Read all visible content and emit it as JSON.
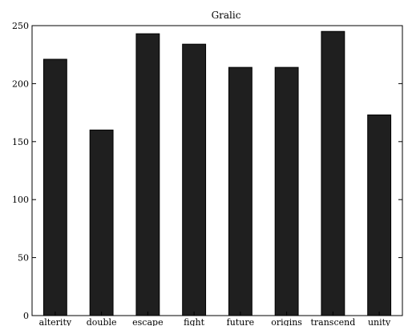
{
  "chart_data": {
    "type": "bar",
    "title": "Gralic",
    "categories": [
      "alterity",
      "double",
      "escape",
      "fight",
      "future",
      "origins",
      "transcend",
      "unity"
    ],
    "values": [
      221,
      160,
      243,
      234,
      214,
      214,
      245,
      173
    ],
    "xlabel": "",
    "ylabel": "",
    "ylim": [
      0,
      250
    ],
    "yticks": [
      0,
      50,
      100,
      150,
      200,
      250
    ],
    "grid": false,
    "legend": false,
    "colors": {
      "bar": "#1f1f1f",
      "axis": "#000000",
      "background": "#ffffff"
    }
  }
}
